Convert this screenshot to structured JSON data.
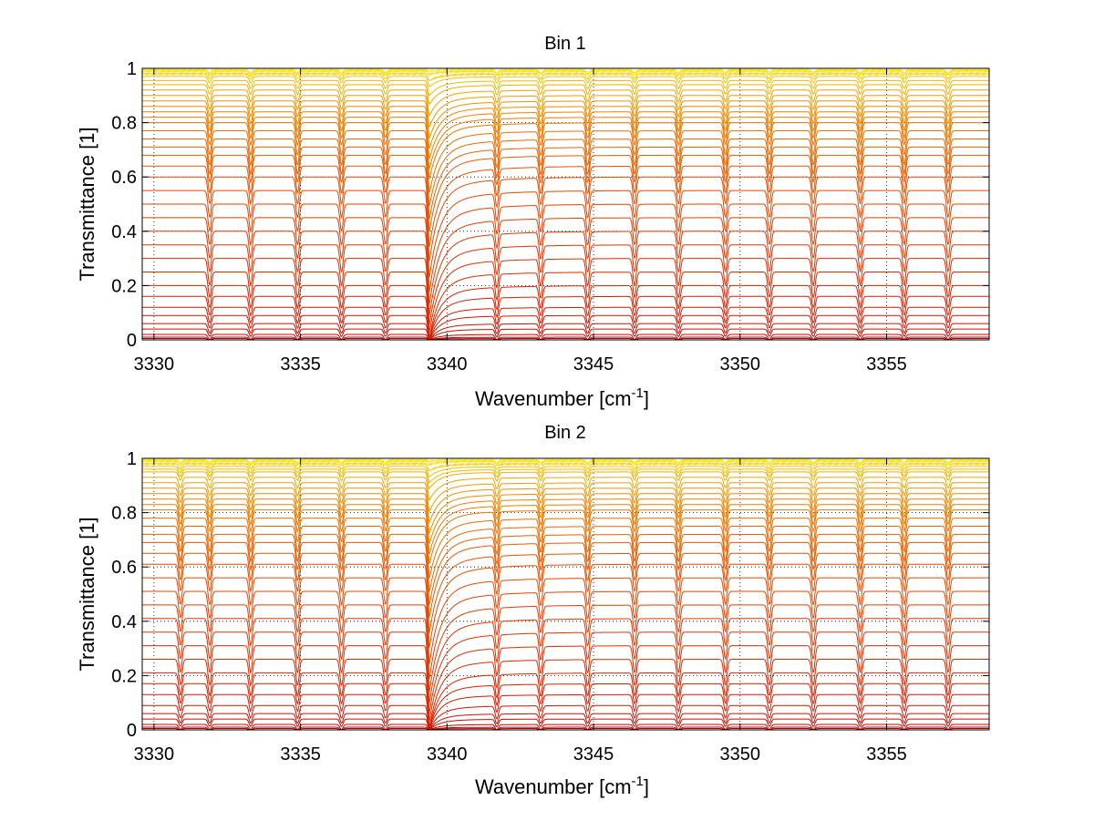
{
  "chart_data": [
    {
      "type": "line",
      "title": "Bin 1",
      "xlabel": "Wavenumber [cm",
      "xlabel_sup": "-1",
      "xlabel_end": "]",
      "ylabel": "Transmittance [1]",
      "xlim": [
        3329.6,
        3358.5
      ],
      "ylim": [
        0,
        1
      ],
      "x_ticks": [
        "3330",
        "3335",
        "3340",
        "3345",
        "3350",
        "3355"
      ],
      "y_ticks": [
        "0",
        "0.2",
        "0.4",
        "0.6",
        "0.8",
        "1"
      ],
      "grid": true,
      "line_positions": [
        3331.9,
        3333.3,
        3334.9,
        3336.4,
        3337.9,
        3341.7,
        3343.2,
        3344.8,
        3346.4,
        3347.9,
        3349.5,
        3351.0,
        3352.5,
        3354.1,
        3355.6,
        3357.1
      ],
      "strong_line": 3339.4,
      "series_baselines": [
        0.005,
        0.01,
        0.02,
        0.04,
        0.06,
        0.09,
        0.12,
        0.16,
        0.2,
        0.25,
        0.3,
        0.35,
        0.4,
        0.45,
        0.5,
        0.55,
        0.6,
        0.64,
        0.68,
        0.71,
        0.74,
        0.77,
        0.8,
        0.82,
        0.84,
        0.86,
        0.88,
        0.9,
        0.92,
        0.94,
        0.955,
        0.97,
        0.98,
        0.99,
        0.995
      ]
    },
    {
      "type": "line",
      "title": "Bin 2",
      "xlabel": "Wavenumber [cm",
      "xlabel_sup": "-1",
      "xlabel_end": "]",
      "ylabel": "Transmittance [1]",
      "xlim": [
        3329.6,
        3358.5
      ],
      "ylim": [
        0,
        1
      ],
      "x_ticks": [
        "3330",
        "3335",
        "3340",
        "3345",
        "3350",
        "3355"
      ],
      "y_ticks": [
        "0",
        "0.2",
        "0.4",
        "0.6",
        "0.8",
        "1"
      ],
      "grid": true,
      "line_positions": [
        3330.9,
        3331.9,
        3333.3,
        3334.9,
        3336.4,
        3337.9,
        3341.7,
        3343.2,
        3344.8,
        3346.4,
        3347.9,
        3349.5,
        3351.0,
        3352.5,
        3354.1,
        3355.6,
        3357.1
      ],
      "strong_line": 3339.4,
      "series_baselines": [
        0.005,
        0.01,
        0.02,
        0.04,
        0.06,
        0.09,
        0.13,
        0.17,
        0.21,
        0.26,
        0.31,
        0.36,
        0.41,
        0.46,
        0.51,
        0.56,
        0.61,
        0.65,
        0.69,
        0.72,
        0.75,
        0.78,
        0.81,
        0.83,
        0.85,
        0.87,
        0.89,
        0.91,
        0.93,
        0.95,
        0.96,
        0.97,
        0.98,
        0.99,
        0.995
      ]
    }
  ]
}
